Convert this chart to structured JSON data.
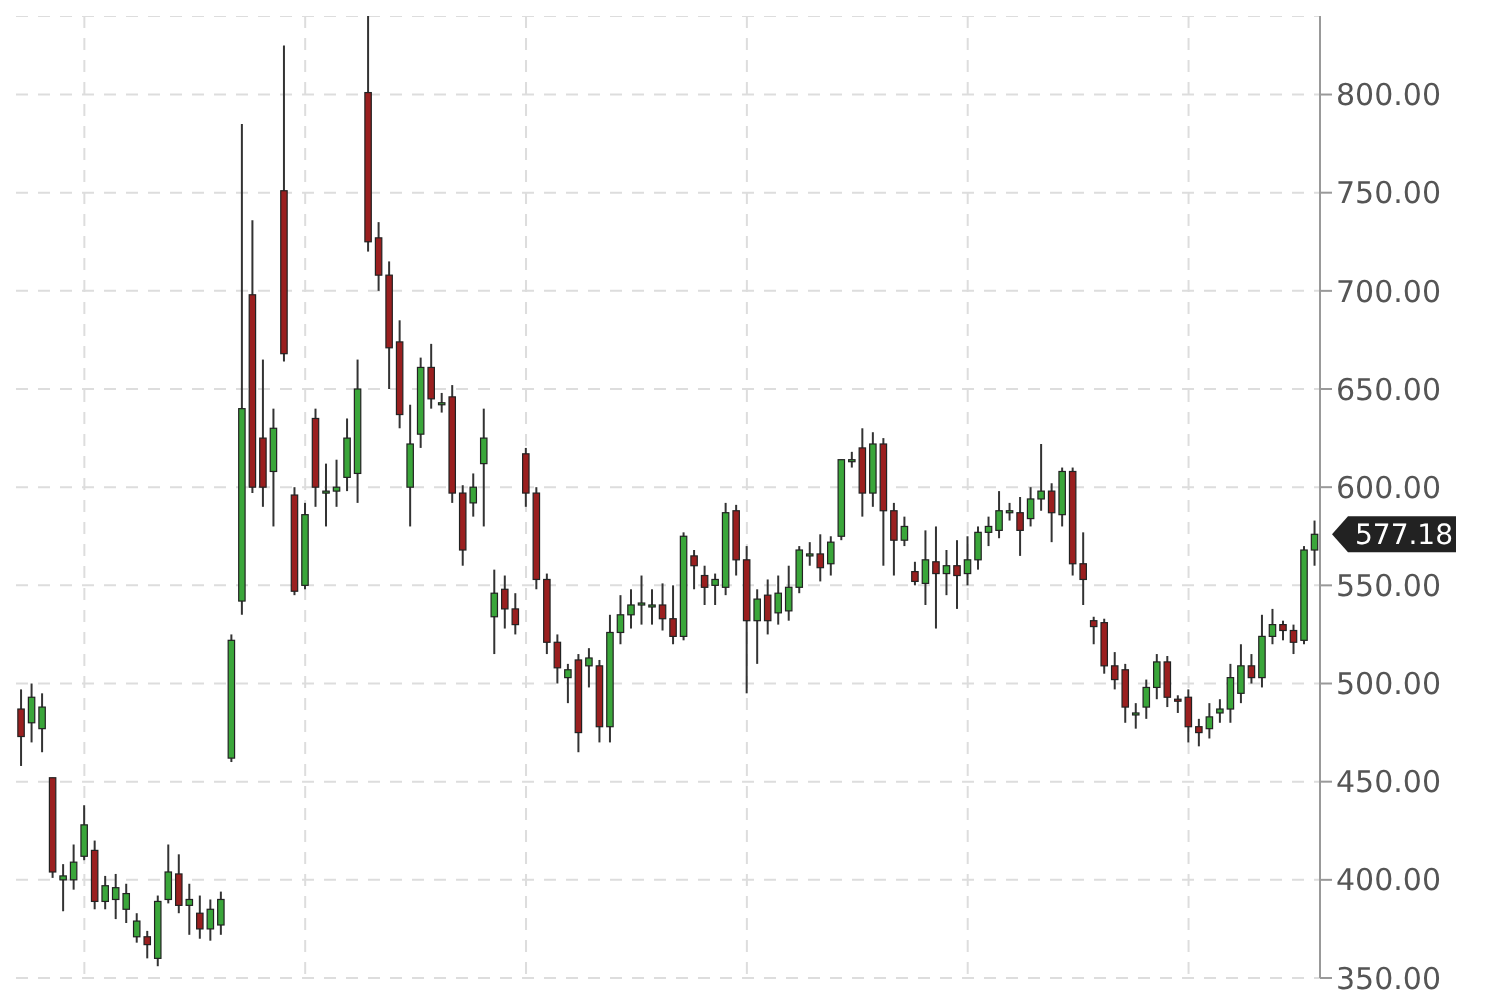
{
  "chart_data": {
    "type": "candlestick",
    "categories": [
      null,
      null,
      null,
      null,
      null,
      null,
      null,
      null,
      null,
      null,
      null,
      null,
      null,
      null,
      null,
      null,
      null,
      null,
      null,
      null,
      null,
      null,
      null,
      null,
      null,
      null,
      null,
      null,
      null,
      null,
      null,
      null,
      null,
      null,
      null,
      null,
      null,
      null,
      null,
      null,
      null,
      null,
      null,
      null,
      null,
      null,
      null,
      null,
      null,
      null,
      null,
      null,
      null,
      null,
      null,
      null,
      null,
      null,
      null,
      null,
      null,
      null,
      null,
      null,
      null,
      null,
      null,
      null,
      null,
      null,
      null,
      null,
      null,
      null,
      null,
      null,
      null,
      null,
      null,
      null,
      null,
      null,
      null,
      null,
      null,
      null,
      null,
      null,
      null,
      null,
      null,
      null,
      null,
      null,
      null,
      null,
      null,
      null,
      null,
      null,
      null,
      null,
      null,
      null,
      null,
      null,
      null,
      null,
      null,
      null,
      null,
      null,
      null,
      null,
      null,
      null,
      null,
      null,
      null,
      null,
      null,
      null,
      null,
      null
    ],
    "ohlc": [
      [
        487,
        497,
        458,
        473
      ],
      [
        480,
        500,
        470,
        493
      ],
      [
        477,
        495,
        465,
        488
      ],
      [
        452,
        452,
        401,
        404
      ],
      [
        400,
        408,
        384,
        402
      ],
      [
        400,
        418,
        395,
        409
      ],
      [
        412,
        438,
        410,
        428
      ],
      [
        415,
        420,
        385,
        389
      ],
      [
        389,
        402,
        385,
        397
      ],
      [
        390,
        403,
        380,
        396
      ],
      [
        385,
        398,
        378,
        393
      ],
      [
        371,
        383,
        368,
        379
      ],
      [
        371,
        374,
        360,
        367
      ],
      [
        360,
        392,
        356,
        389
      ],
      [
        390,
        418,
        388,
        404
      ],
      [
        403,
        413,
        383,
        387
      ],
      [
        387,
        398,
        372,
        390
      ],
      [
        383,
        392,
        370,
        375
      ],
      [
        375,
        390,
        369,
        385
      ],
      [
        377,
        394,
        372,
        390
      ],
      [
        462,
        525,
        460,
        522
      ],
      [
        542,
        785,
        535,
        640
      ],
      [
        698,
        736,
        597,
        600
      ],
      [
        625,
        665,
        590,
        600
      ],
      [
        608,
        640,
        580,
        630
      ],
      [
        751,
        825,
        664,
        668
      ],
      [
        596,
        600,
        545,
        547
      ],
      [
        550,
        592,
        548,
        586
      ],
      [
        635,
        640,
        590,
        600
      ],
      [
        598,
        612,
        580,
        598
      ],
      [
        598,
        614,
        590,
        600
      ],
      [
        605,
        635,
        598,
        625
      ],
      [
        607,
        665,
        592,
        650
      ],
      [
        801,
        840,
        720,
        725
      ],
      [
        727,
        735,
        700,
        708
      ],
      [
        708,
        715,
        650,
        671
      ],
      [
        674,
        685,
        630,
        637
      ],
      [
        600,
        642,
        580,
        622
      ],
      [
        627,
        666,
        620,
        661
      ],
      [
        661,
        673,
        640,
        645
      ],
      [
        643,
        648,
        638,
        643
      ],
      [
        646,
        652,
        592,
        597
      ],
      [
        597,
        601,
        560,
        568
      ],
      [
        592,
        607,
        585,
        600
      ],
      [
        612,
        640,
        580,
        625
      ],
      [
        534,
        558,
        515,
        546
      ],
      [
        548,
        555,
        528,
        538
      ],
      [
        538,
        546,
        525,
        530
      ],
      [
        617,
        620,
        590,
        597
      ],
      [
        597,
        600,
        548,
        553
      ],
      [
        553,
        556,
        515,
        521
      ],
      [
        521,
        525,
        500,
        508
      ],
      [
        503,
        510,
        490,
        507
      ],
      [
        512,
        515,
        465,
        475
      ],
      [
        509,
        518,
        498,
        513
      ],
      [
        509,
        512,
        470,
        478
      ],
      [
        478,
        535,
        470,
        526
      ],
      [
        526,
        545,
        520,
        535
      ],
      [
        535,
        548,
        528,
        540
      ],
      [
        540,
        555,
        530,
        541
      ],
      [
        540,
        548,
        530,
        540
      ],
      [
        540,
        551,
        527,
        533
      ],
      [
        533,
        550,
        520,
        524
      ],
      [
        524,
        577,
        522,
        575
      ],
      [
        565,
        568,
        548,
        560
      ],
      [
        555,
        560,
        540,
        549
      ],
      [
        550,
        556,
        540,
        553
      ],
      [
        549,
        592,
        545,
        587
      ],
      [
        588,
        591,
        555,
        563
      ],
      [
        563,
        570,
        495,
        532
      ],
      [
        532,
        548,
        510,
        543
      ],
      [
        545,
        553,
        525,
        532
      ],
      [
        536,
        555,
        530,
        546
      ],
      [
        537,
        560,
        532,
        549
      ],
      [
        549,
        570,
        546,
        568
      ],
      [
        566,
        572,
        560,
        566
      ],
      [
        566,
        576,
        552,
        559
      ],
      [
        561,
        575,
        555,
        572
      ],
      [
        575,
        614,
        573,
        614
      ],
      [
        614,
        618,
        610,
        614
      ],
      [
        620,
        630,
        585,
        597
      ],
      [
        597,
        628,
        590,
        622
      ],
      [
        622,
        625,
        560,
        588
      ],
      [
        588,
        592,
        555,
        573
      ],
      [
        573,
        585,
        570,
        580
      ],
      [
        557,
        562,
        550,
        552
      ],
      [
        551,
        578,
        540,
        563
      ],
      [
        562,
        580,
        528,
        556
      ],
      [
        556,
        568,
        545,
        560
      ],
      [
        560,
        573,
        538,
        555
      ],
      [
        556,
        575,
        550,
        563
      ],
      [
        563,
        580,
        558,
        577
      ],
      [
        577,
        585,
        570,
        580
      ],
      [
        578,
        598,
        574,
        588
      ],
      [
        588,
        592,
        583,
        588
      ],
      [
        587,
        595,
        565,
        578
      ],
      [
        584,
        600,
        580,
        594
      ],
      [
        594,
        622,
        588,
        598
      ],
      [
        598,
        602,
        572,
        587
      ],
      [
        586,
        610,
        580,
        608
      ],
      [
        608,
        610,
        555,
        561
      ],
      [
        561,
        577,
        540,
        553
      ],
      [
        532,
        534,
        520,
        529
      ],
      [
        531,
        533,
        505,
        509
      ],
      [
        509,
        516,
        497,
        502
      ],
      [
        507,
        510,
        480,
        488
      ],
      [
        485,
        490,
        477,
        485
      ],
      [
        488,
        502,
        482,
        498
      ],
      [
        498,
        515,
        492,
        511
      ],
      [
        511,
        514,
        488,
        493
      ],
      [
        492,
        494,
        485,
        492
      ],
      [
        493,
        497,
        470,
        478
      ],
      [
        478,
        482,
        468,
        475
      ],
      [
        477,
        490,
        472,
        483
      ],
      [
        485,
        492,
        480,
        487
      ],
      [
        487,
        510,
        480,
        503
      ],
      [
        495,
        520,
        490,
        509
      ],
      [
        509,
        515,
        500,
        503
      ],
      [
        503,
        535,
        498,
        524
      ],
      [
        524,
        538,
        520,
        530
      ],
      [
        530,
        532,
        522,
        527
      ],
      [
        527,
        530,
        515,
        521
      ],
      [
        522,
        570,
        520,
        568
      ],
      [
        568,
        583,
        560,
        576
      ]
    ],
    "colors": [
      "#9a1f1f",
      "#3aa63a",
      "#3aa63a",
      "#9a1f1f",
      "#3aa63a",
      "#3aa63a",
      "#3aa63a",
      "#9a1f1f",
      "#3aa63a",
      "#3aa63a",
      "#3aa63a",
      "#3aa63a",
      "#9a1f1f",
      "#3aa63a",
      "#3aa63a",
      "#9a1f1f",
      "#3aa63a",
      "#9a1f1f",
      "#3aa63a",
      "#3aa63a",
      "#3aa63a",
      "#3aa63a",
      "#9a1f1f",
      "#9a1f1f",
      "#3aa63a",
      "#9a1f1f",
      "#9a1f1f",
      "#3aa63a",
      "#9a1f1f",
      "#3aa63a",
      "#3aa63a",
      "#3aa63a",
      "#3aa63a",
      "#9a1f1f",
      "#9a1f1f",
      "#9a1f1f",
      "#9a1f1f",
      "#3aa63a",
      "#3aa63a",
      "#9a1f1f",
      "#3aa63a",
      "#9a1f1f",
      "#9a1f1f",
      "#3aa63a",
      "#3aa63a",
      "#3aa63a",
      "#9a1f1f",
      "#9a1f1f",
      "#9a1f1f",
      "#9a1f1f",
      "#9a1f1f",
      "#9a1f1f",
      "#3aa63a",
      "#9a1f1f",
      "#3aa63a",
      "#9a1f1f",
      "#3aa63a",
      "#3aa63a",
      "#3aa63a",
      "#3aa63a",
      "#3aa63a",
      "#9a1f1f",
      "#9a1f1f",
      "#3aa63a",
      "#9a1f1f",
      "#9a1f1f",
      "#3aa63a",
      "#3aa63a",
      "#9a1f1f",
      "#9a1f1f",
      "#3aa63a",
      "#9a1f1f",
      "#3aa63a",
      "#3aa63a",
      "#3aa63a",
      "#3aa63a",
      "#9a1f1f",
      "#3aa63a",
      "#3aa63a",
      "#3aa63a",
      "#9a1f1f",
      "#3aa63a",
      "#9a1f1f",
      "#9a1f1f",
      "#3aa63a",
      "#9a1f1f",
      "#3aa63a",
      "#9a1f1f",
      "#3aa63a",
      "#9a1f1f",
      "#3aa63a",
      "#3aa63a",
      "#3aa63a",
      "#3aa63a",
      "#3aa63a",
      "#9a1f1f",
      "#3aa63a",
      "#3aa63a",
      "#9a1f1f",
      "#3aa63a",
      "#9a1f1f",
      "#9a1f1f",
      "#9a1f1f",
      "#9a1f1f",
      "#9a1f1f",
      "#9a1f1f",
      "#3aa63a",
      "#3aa63a",
      "#3aa63a",
      "#9a1f1f",
      "#9a1f1f",
      "#9a1f1f",
      "#9a1f1f",
      "#3aa63a",
      "#3aa63a",
      "#3aa63a",
      "#3aa63a",
      "#9a1f1f",
      "#3aa63a",
      "#3aa63a",
      "#9a1f1f",
      "#9a1f1f",
      "#3aa63a",
      "#3aa63a"
    ],
    "ylim": [
      350,
      840
    ],
    "yticks": [
      {
        "value": 350,
        "label": "350.00"
      },
      {
        "value": 400,
        "label": "400.00"
      },
      {
        "value": 450,
        "label": "450.00"
      },
      {
        "value": 500,
        "label": "500.00"
      },
      {
        "value": 550,
        "label": "550.00"
      },
      {
        "value": 600,
        "label": "600.00"
      },
      {
        "value": 650,
        "label": "650.00"
      },
      {
        "value": 700,
        "label": "700.00"
      },
      {
        "value": 750,
        "label": "750.00"
      },
      {
        "value": 800,
        "label": "800.00"
      }
    ],
    "annotations": [
      "577.18"
    ],
    "grid": true,
    "tick_labels": "y"
  }
}
